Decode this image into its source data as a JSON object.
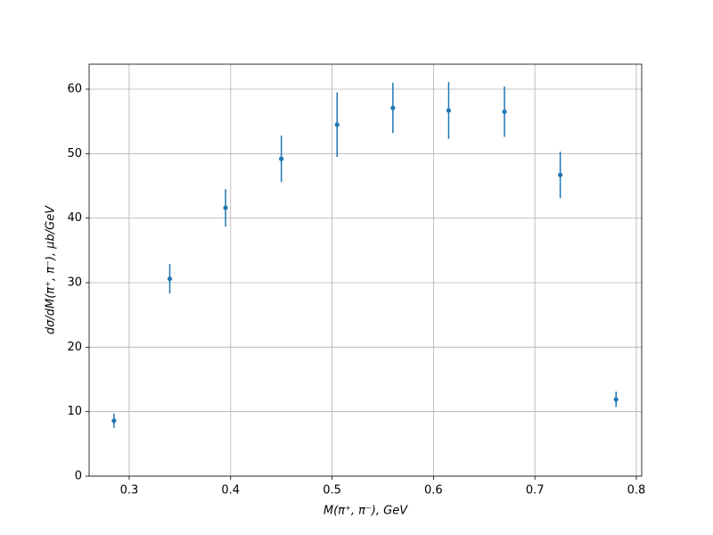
{
  "chart_data": {
    "type": "scatter",
    "x_label": "M(π⁺, π⁻), GeV",
    "y_label": "dσ/dM(π⁺, π⁻), μb/GeV",
    "x": [
      0.285,
      0.34,
      0.395,
      0.45,
      0.505,
      0.56,
      0.615,
      0.67,
      0.725,
      0.78
    ],
    "series": [
      {
        "color": "#1f77b4",
        "values": [
          8.6,
          30.6,
          41.6,
          49.2,
          54.5,
          57.1,
          56.7,
          56.5,
          46.7,
          11.9
        ],
        "errors": [
          1.1,
          2.3,
          2.9,
          3.6,
          5.0,
          3.9,
          4.4,
          3.9,
          3.6,
          1.2
        ]
      }
    ],
    "xlim": [
      0.2605,
      0.8053
    ],
    "ylim": [
      0,
      63.87
    ],
    "xticks": [
      0.3,
      0.4,
      0.5,
      0.6,
      0.7,
      0.8
    ],
    "yticks": [
      0,
      10,
      20,
      30,
      40,
      50,
      60
    ],
    "grid": true
  }
}
